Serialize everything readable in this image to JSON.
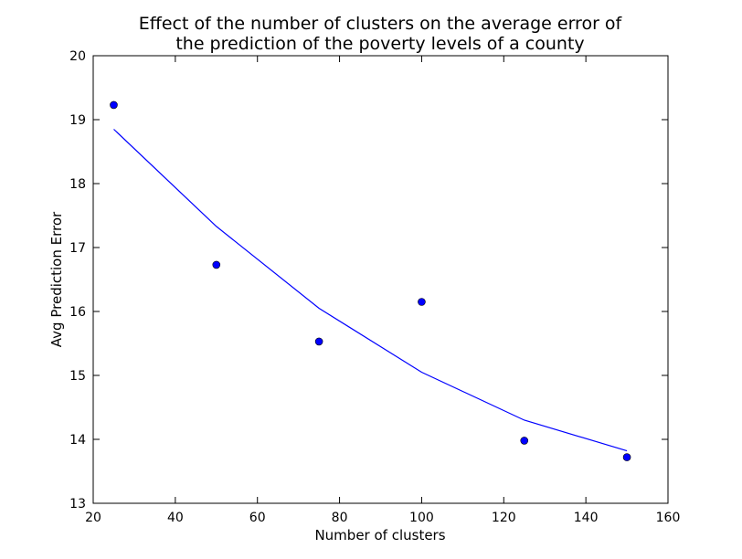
{
  "chart_data": {
    "type": "scatter",
    "title": [
      "Effect of the number of clusters on the average error of",
      "the prediction of the poverty levels of a county"
    ],
    "xlabel": "Number of clusters",
    "ylabel": "Avg Prediction Error",
    "xlim": [
      20,
      160
    ],
    "ylim": [
      13,
      20
    ],
    "x_ticks": [
      20,
      40,
      60,
      80,
      100,
      120,
      140,
      160
    ],
    "y_ticks": [
      13,
      14,
      15,
      16,
      17,
      18,
      19,
      20
    ],
    "grid": false,
    "series": [
      {
        "type": "scatter",
        "color": "#0000ff",
        "points": [
          {
            "x": 25,
            "y": 19.23
          },
          {
            "x": 50,
            "y": 16.73
          },
          {
            "x": 75,
            "y": 15.53
          },
          {
            "x": 100,
            "y": 16.15
          },
          {
            "x": 125,
            "y": 13.98
          },
          {
            "x": 150,
            "y": 13.72
          }
        ]
      },
      {
        "type": "line",
        "color": "#0000ff",
        "points": [
          {
            "x": 25,
            "y": 18.85
          },
          {
            "x": 50,
            "y": 17.33
          },
          {
            "x": 75,
            "y": 16.05
          },
          {
            "x": 100,
            "y": 15.05
          },
          {
            "x": 125,
            "y": 14.3
          },
          {
            "x": 150,
            "y": 13.82
          }
        ]
      }
    ]
  }
}
